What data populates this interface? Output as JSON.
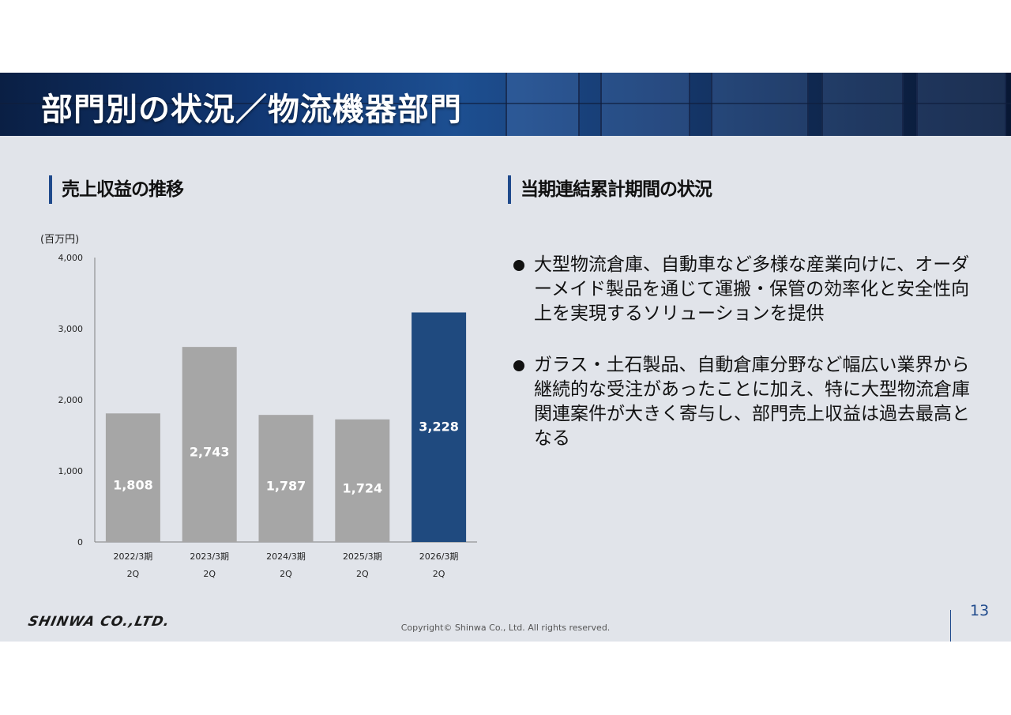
{
  "header": {
    "title": "部門別の状況／物流機器部門"
  },
  "left_section": {
    "heading": "売上収益の推移",
    "unit": "(百万円)"
  },
  "right_section": {
    "heading": "当期連結累計期間の状況",
    "bullets": [
      "大型物流倉庫、自動車など多様な産業向けに、オーダーメイド製品を通じて運搬・保管の効率化と安全性向上を実現するソリューションを提供",
      "ガラス・土石製品、自動倉庫分野など幅広い業界から継続的な受注があったことに加え、特に大型物流倉庫関連案件が大きく寄与し、部門売上収益は過去最高となる"
    ]
  },
  "chart_data": {
    "type": "bar",
    "categories": [
      [
        "2022/3期",
        "2Q"
      ],
      [
        "2023/3期",
        "2Q"
      ],
      [
        "2024/3期",
        "2Q"
      ],
      [
        "2025/3期",
        "2Q"
      ],
      [
        "2026/3期",
        "2Q"
      ]
    ],
    "values": [
      1808,
      2743,
      1787,
      1724,
      3228
    ],
    "value_labels": [
      "1,808",
      "2,743",
      "1,787",
      "1,724",
      "3,228"
    ],
    "yticks": [
      0,
      1000,
      2000,
      3000,
      4000
    ],
    "ytick_labels": [
      "0",
      "1,000",
      "2,000",
      "3,000",
      "4,000"
    ],
    "ylim": [
      0,
      4000
    ],
    "ylabel": "(百万円)",
    "colors": {
      "default": "#a6a6a6",
      "highlight": "#1f4a7f",
      "label": "#ffffff"
    },
    "highlight_index": 4,
    "grid": false
  },
  "footer": {
    "logo_text": "SHINWA CO.,LTD.",
    "copyright": "Copyright© Shinwa Co., Ltd. All rights reserved.",
    "page_number": "13"
  }
}
